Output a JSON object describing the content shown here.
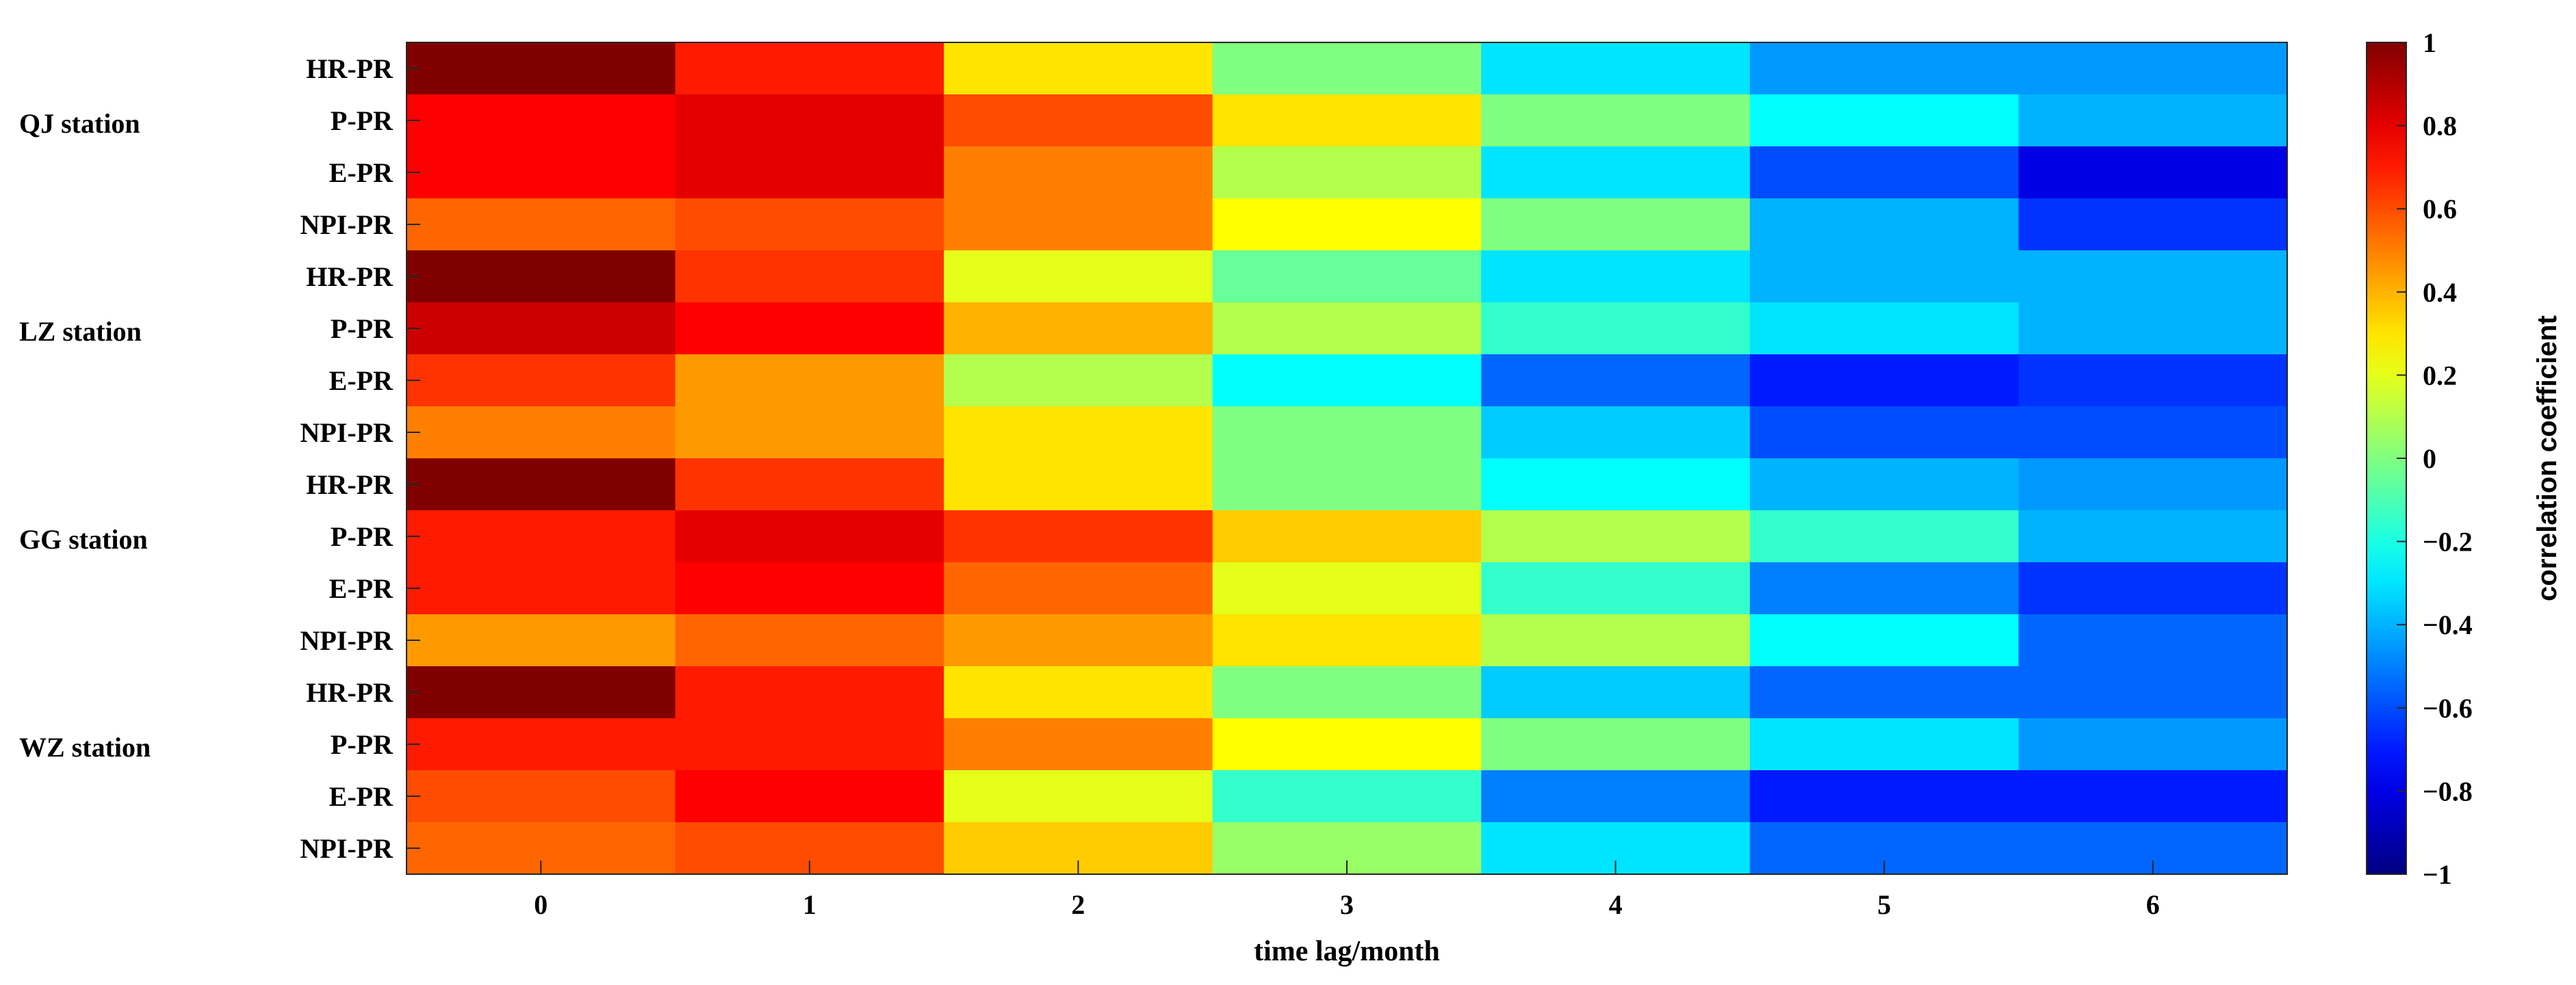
{
  "chart_data": {
    "type": "heatmap",
    "title": "",
    "xlabel": "time lag/month",
    "colorbar_label": "correlation coefficient",
    "colormap": "jet",
    "x": [
      "0",
      "1",
      "2",
      "3",
      "4",
      "5",
      "6"
    ],
    "rows": [
      "HR-PR",
      "P-PR",
      "E-PR",
      "NPI-PR",
      "HR-PR",
      "P-PR",
      "E-PR",
      "NPI-PR",
      "HR-PR",
      "P-PR",
      "E-PR",
      "NPI-PR",
      "HR-PR",
      "P-PR",
      "E-PR",
      "NPI-PR"
    ],
    "groups": [
      "QJ station",
      "LZ station",
      "GG station",
      "WZ station"
    ],
    "values": [
      [
        1.0,
        0.7,
        0.3,
        0.0,
        -0.3,
        -0.45,
        -0.45
      ],
      [
        0.75,
        0.8,
        0.6,
        0.3,
        0.0,
        -0.25,
        -0.4
      ],
      [
        0.75,
        0.8,
        0.5,
        0.1,
        -0.3,
        -0.6,
        -0.8
      ],
      [
        0.55,
        0.6,
        0.5,
        0.25,
        0.0,
        -0.4,
        -0.65
      ],
      [
        1.0,
        0.65,
        0.2,
        -0.05,
        -0.3,
        -0.4,
        -0.4
      ],
      [
        0.85,
        0.75,
        0.4,
        0.1,
        -0.15,
        -0.3,
        -0.4
      ],
      [
        0.65,
        0.45,
        0.1,
        -0.25,
        -0.55,
        -0.7,
        -0.65
      ],
      [
        0.5,
        0.45,
        0.3,
        0.0,
        -0.35,
        -0.6,
        -0.6
      ],
      [
        1.0,
        0.65,
        0.3,
        0.0,
        -0.25,
        -0.4,
        -0.45
      ],
      [
        0.7,
        0.8,
        0.65,
        0.35,
        0.1,
        -0.15,
        -0.4
      ],
      [
        0.7,
        0.75,
        0.55,
        0.2,
        -0.15,
        -0.5,
        -0.65
      ],
      [
        0.45,
        0.55,
        0.45,
        0.3,
        0.1,
        -0.25,
        -0.55
      ],
      [
        1.0,
        0.7,
        0.3,
        0.0,
        -0.35,
        -0.55,
        -0.55
      ],
      [
        0.7,
        0.7,
        0.5,
        0.25,
        0.0,
        -0.3,
        -0.45
      ],
      [
        0.6,
        0.75,
        0.2,
        -0.15,
        -0.5,
        -0.7,
        -0.7
      ],
      [
        0.55,
        0.6,
        0.35,
        0.05,
        -0.3,
        -0.55,
        -0.55
      ]
    ],
    "colorbar_range": [
      -1,
      1
    ],
    "colorbar_ticks": [
      "1",
      "0.8",
      "0.6",
      "0.4",
      "0.2",
      "0",
      "−0.2",
      "−0.4",
      "−0.6",
      "−0.8",
      "−1"
    ],
    "colorbar_tick_values": [
      1,
      0.8,
      0.6,
      0.4,
      0.2,
      0,
      -0.2,
      -0.4,
      -0.6,
      -0.8,
      -1
    ]
  }
}
